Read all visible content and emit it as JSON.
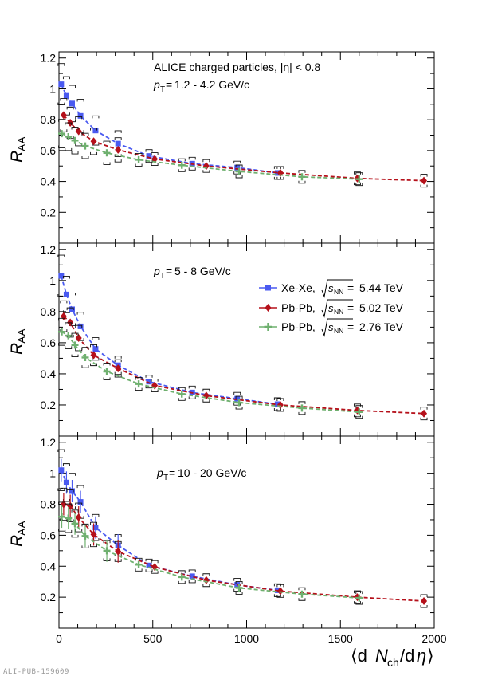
{
  "watermark": "ALI-PUB-159609",
  "colors": {
    "xexe": "#4a5af0",
    "pbpb502": "#b5101a",
    "pbpb276": "#6fb06f"
  },
  "chart_data": {
    "type": "scatter",
    "x_axis": {
      "range": [
        0,
        2000
      ],
      "ticks": [
        0,
        500,
        1000,
        1500,
        2000
      ]
    },
    "y_axis": {
      "ticks": [
        0.2,
        0.4,
        0.6,
        0.8,
        1,
        1.2
      ]
    },
    "legend": {
      "placement": "top-right of middle panel",
      "entries": [
        {
          "series": "Xe-Xe",
          "label": "Xe-Xe, √sNN = 5.44 TeV",
          "system": "Xe-Xe,",
          "sqrt_s": "5.44 TeV"
        },
        {
          "series": "Pb-Pb 5.02",
          "label": "Pb-Pb, √sNN = 5.02 TeV",
          "system": "Pb-Pb,",
          "sqrt_s": "5.02 TeV"
        },
        {
          "series": "Pb-Pb 2.76",
          "label": "Pb-Pb, √sNN = 2.76 TeV",
          "system": "Pb-Pb,",
          "sqrt_s": "2.76 TeV"
        }
      ]
    },
    "panels": [
      {
        "header": "ALICE charged particles, |η| < 0.8",
        "pt_range": "1.2 - 4.2 GeV/c",
        "ylim": [
          0,
          1.24
        ],
        "series": [
          {
            "key": "xexe",
            "x": [
              12,
              40,
              70,
              115,
              195,
              315,
              480,
              710,
              950,
              1165
            ],
            "y": [
              1.03,
              0.955,
              0.905,
              0.825,
              0.73,
              0.645,
              0.565,
              0.515,
              0.49,
              0.455
            ]
          },
          {
            "key": "pbpb502",
            "x": [
              25,
              60,
              105,
              185,
              315,
              510,
              785,
              1180,
              1590,
              1945
            ],
            "y": [
              0.83,
              0.78,
              0.725,
              0.66,
              0.605,
              0.545,
              0.5,
              0.455,
              0.42,
              0.405
            ]
          },
          {
            "key": "pbpb276",
            "x": [
              15,
              50,
              85,
              140,
              255,
              425,
              655,
              960,
              1295,
              1600
            ],
            "y": [
              0.71,
              0.69,
              0.665,
              0.63,
              0.585,
              0.54,
              0.505,
              0.465,
              0.43,
              0.415
            ]
          }
        ]
      },
      {
        "header": "",
        "pt_range": "5 - 8 GeV/c",
        "ylim": [
          0,
          1.24
        ],
        "series": [
          {
            "key": "xexe",
            "x": [
              12,
              40,
              70,
              115,
              195,
              315,
              480,
              710,
              950,
              1165
            ],
            "y": [
              1.03,
              0.91,
              0.815,
              0.705,
              0.56,
              0.455,
              0.35,
              0.28,
              0.24,
              0.205
            ]
          },
          {
            "key": "pbpb502",
            "x": [
              25,
              60,
              105,
              185,
              315,
              510,
              785,
              1180,
              1590,
              1945
            ],
            "y": [
              0.77,
              0.73,
              0.63,
              0.52,
              0.435,
              0.325,
              0.26,
              0.2,
              0.165,
              0.145
            ]
          },
          {
            "key": "pbpb276",
            "x": [
              15,
              50,
              85,
              140,
              255,
              425,
              655,
              960,
              1295,
              1600
            ],
            "y": [
              0.67,
              0.645,
              0.585,
              0.505,
              0.415,
              0.335,
              0.27,
              0.215,
              0.18,
              0.155
            ]
          }
        ]
      },
      {
        "header": "",
        "pt_range": "10 - 20 GeV/c",
        "ylim": [
          0,
          1.24
        ],
        "series": [
          {
            "key": "xexe",
            "x": [
              12,
              40,
              70,
              115,
              195,
              315,
              480,
              710,
              950,
              1165
            ],
            "y": [
              1.02,
              0.94,
              0.885,
              0.815,
              0.65,
              0.535,
              0.405,
              0.335,
              0.28,
              0.245
            ]
          },
          {
            "key": "pbpb502",
            "x": [
              25,
              60,
              105,
              185,
              315,
              510,
              785,
              1180,
              1590,
              1945
            ],
            "y": [
              0.8,
              0.79,
              0.715,
              0.605,
              0.495,
              0.395,
              0.31,
              0.24,
              0.2,
              0.175
            ]
          },
          {
            "key": "pbpb276",
            "x": [
              15,
              50,
              85,
              140,
              255,
              425,
              655,
              960,
              1295,
              1600
            ],
            "y": [
              0.72,
              0.71,
              0.675,
              0.595,
              0.5,
              0.41,
              0.33,
              0.26,
              0.22,
              0.195
            ]
          }
        ]
      }
    ]
  }
}
